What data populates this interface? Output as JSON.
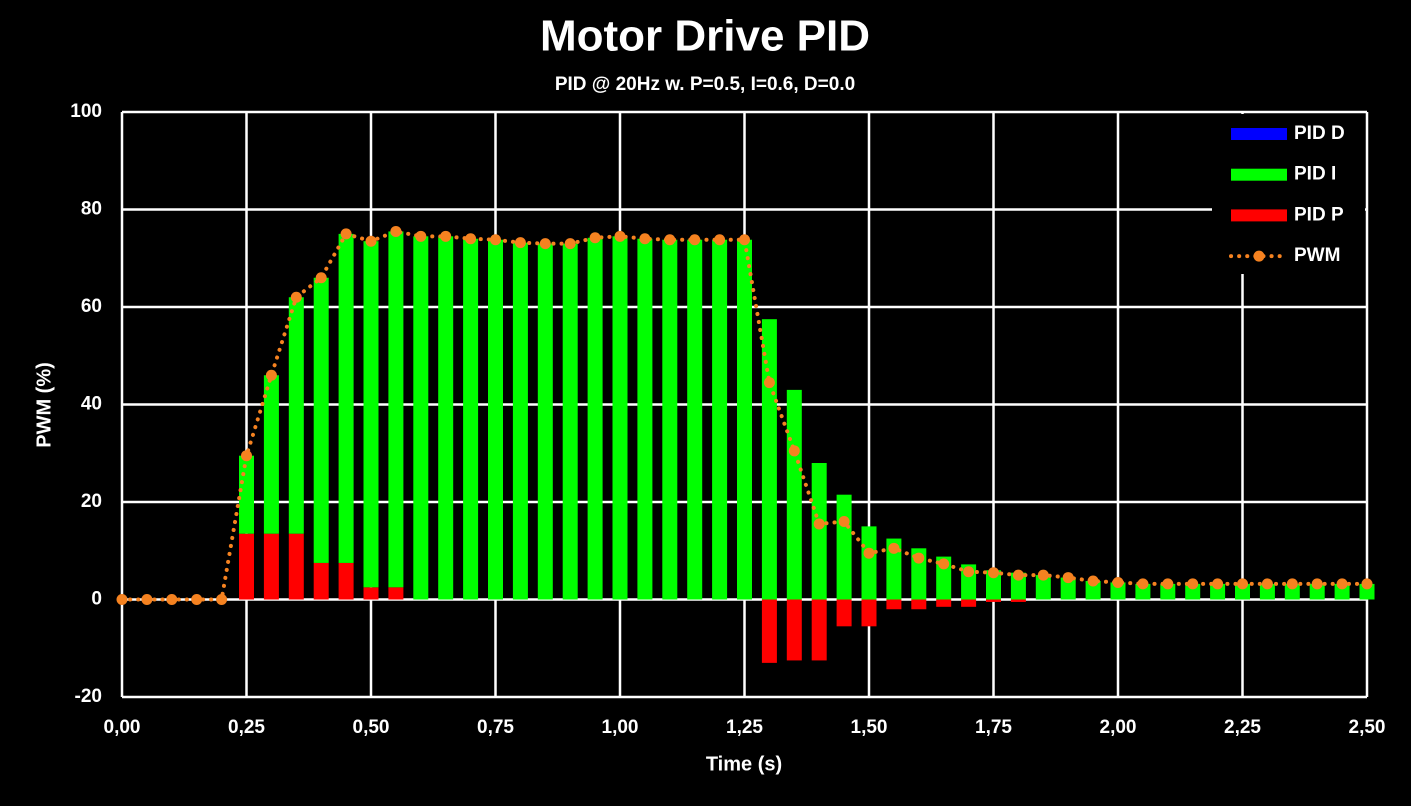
{
  "chart_data": {
    "type": "bar",
    "title": "Motor Drive PID",
    "subtitle": "PID @ 20Hz w. P=0.5, I=0.6, D=0.0",
    "x_label": "Time (s)",
    "y_label": "PWM (%)",
    "x": [
      0,
      0.05,
      0.1,
      0.15,
      0.2,
      0.25,
      0.3,
      0.35,
      0.4,
      0.45,
      0.5,
      0.55,
      0.6,
      0.65,
      0.7,
      0.75,
      0.8,
      0.85,
      0.9,
      0.95,
      1,
      1.05,
      1.1,
      1.15,
      1.2,
      1.25,
      1.3,
      1.35,
      1.4,
      1.45,
      1.5,
      1.55,
      1.6,
      1.65,
      1.7,
      1.75,
      1.8,
      1.85,
      1.9,
      1.95,
      2,
      2.05,
      2.1,
      2.15,
      2.2,
      2.25,
      2.3,
      2.35,
      2.4,
      2.45,
      2.5
    ],
    "series": [
      {
        "name": "PID D",
        "color": "#0000ff",
        "values": [
          0,
          0,
          0,
          0,
          0,
          0,
          0,
          0,
          0,
          0,
          0,
          0,
          0,
          0,
          0,
          0,
          0,
          0,
          0,
          0,
          0,
          0,
          0,
          0,
          0,
          0,
          0,
          0,
          0,
          0,
          0,
          0,
          0,
          0,
          0,
          0,
          0,
          0,
          0,
          0,
          0,
          0,
          0,
          0,
          0,
          0,
          0,
          0,
          0,
          0,
          0
        ]
      },
      {
        "name": "PID I",
        "color": "#00ff00",
        "values": [
          0,
          0,
          0,
          0,
          0,
          16,
          32.5,
          48.5,
          58.5,
          67.5,
          71,
          73,
          74.5,
          74.5,
          74,
          73.8,
          73.2,
          73,
          73,
          74.2,
          74.5,
          74,
          73.8,
          73.8,
          73.8,
          73.8,
          57.5,
          43,
          28,
          21.5,
          15,
          12.5,
          10.5,
          8.8,
          7.2,
          6,
          5.5,
          5,
          4.5,
          3.8,
          3.5,
          3.2,
          3.2,
          3.2,
          3.2,
          3.2,
          3.2,
          3.2,
          3.2,
          3.2,
          3.2
        ]
      },
      {
        "name": "PID P",
        "color": "#ff0000",
        "values": [
          0,
          0,
          0,
          0,
          0,
          13.5,
          13.5,
          13.5,
          7.5,
          7.5,
          2.5,
          2.5,
          0,
          0,
          0,
          0,
          0,
          0,
          0,
          0,
          0,
          0,
          0,
          0,
          0,
          0,
          -13,
          -12.5,
          -12.5,
          -5.5,
          -5.5,
          -2,
          -2,
          -1.5,
          -1.5,
          -0.5,
          -0.5,
          0,
          0,
          0,
          0,
          0,
          0,
          0,
          0,
          0,
          0,
          0,
          0,
          0,
          0
        ]
      },
      {
        "name": "PWM",
        "type": "line",
        "color": "#f58220",
        "values": [
          0,
          0,
          0,
          0,
          0,
          29.5,
          46,
          62,
          66,
          75,
          73.5,
          75.5,
          74.5,
          74.5,
          74,
          73.8,
          73.2,
          73,
          73,
          74.2,
          74.5,
          74,
          73.8,
          73.8,
          73.8,
          73.8,
          44.5,
          30.5,
          15.5,
          16,
          9.5,
          10.5,
          8.5,
          7.3,
          5.7,
          5.5,
          5,
          5,
          4.5,
          3.8,
          3.5,
          3.2,
          3.2,
          3.2,
          3.2,
          3.2,
          3.2,
          3.2,
          3.2,
          3.2,
          3.2
        ]
      }
    ],
    "xlim": [
      0,
      2.5
    ],
    "xticks": [
      {
        "value": 0,
        "label": "0,00"
      },
      {
        "value": 0.25,
        "label": "0,25"
      },
      {
        "value": 0.5,
        "label": "0,50"
      },
      {
        "value": 0.75,
        "label": "0,75"
      },
      {
        "value": 1,
        "label": "1,00"
      },
      {
        "value": 1.25,
        "label": "1,25"
      },
      {
        "value": 1.5,
        "label": "1,50"
      },
      {
        "value": 1.75,
        "label": "1,75"
      },
      {
        "value": 2,
        "label": "2,00"
      },
      {
        "value": 2.25,
        "label": "2,25"
      },
      {
        "value": 2.5,
        "label": "2,50"
      }
    ],
    "ylim": [
      -20,
      100
    ],
    "yticks": [
      -20,
      0,
      20,
      40,
      60,
      80,
      100
    ],
    "grid": true,
    "stacked": true,
    "legend": "top-right"
  }
}
